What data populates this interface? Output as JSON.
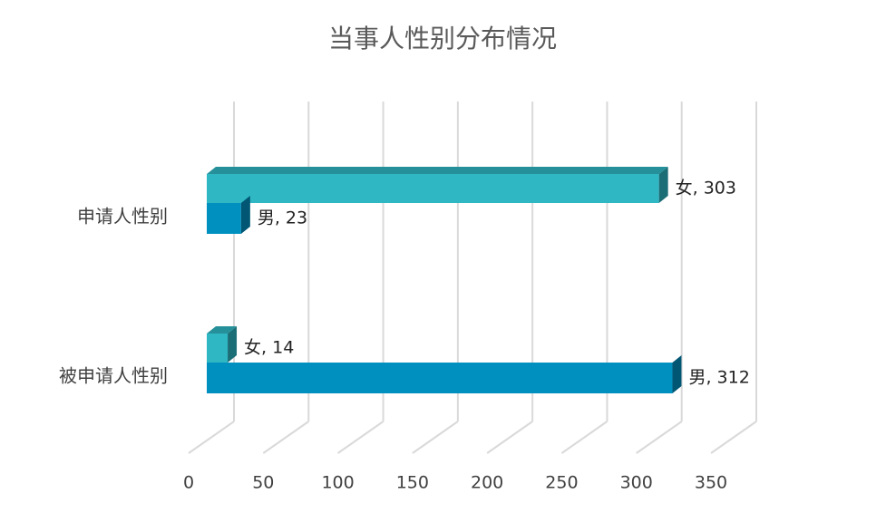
{
  "chart_data": {
    "type": "bar",
    "title": "当事人性别分布情况",
    "categories": [
      "申请人性别",
      "被申请人性别"
    ],
    "series": [
      {
        "name": "女",
        "color": "#2fb8c4",
        "values": [
          303,
          14
        ],
        "value_labels": [
          "女, 303",
          "女, 14"
        ]
      },
      {
        "name": "男",
        "color": "#0090c0",
        "values": [
          23,
          312
        ],
        "value_labels": [
          "男, 23",
          "男, 312"
        ]
      }
    ],
    "xlim": [
      0,
      350
    ],
    "xticks": [
      0,
      50,
      100,
      150,
      200,
      250,
      300,
      350
    ],
    "grid": true
  }
}
